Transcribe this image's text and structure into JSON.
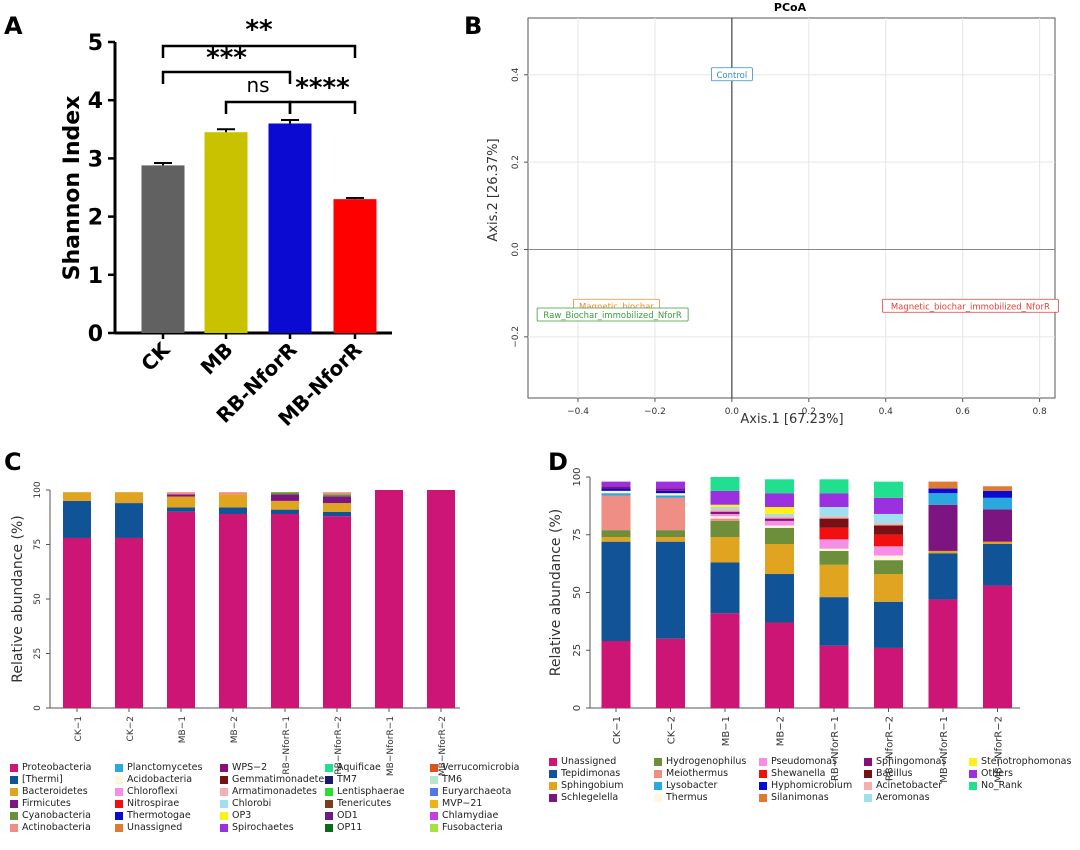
{
  "panel_letters": [
    "A",
    "B",
    "C",
    "D"
  ],
  "chart_data": [
    {
      "id": "A",
      "type": "bar",
      "ylabel": "Shannon Index",
      "ylim": [
        0,
        5
      ],
      "yticks": [
        "0",
        "1",
        "2",
        "3",
        "4",
        "5"
      ],
      "categories": [
        "CK",
        "MB",
        "RB-NforR",
        "MB-NforR"
      ],
      "values": [
        2.88,
        3.45,
        3.6,
        2.3
      ],
      "errors": [
        0.04,
        0.05,
        0.06,
        0.02
      ],
      "colors": [
        "#616161",
        "#c8c200",
        "#0a0ad2",
        "#ff0000"
      ],
      "significance": [
        {
          "from": "CK",
          "to": "MB-NforR",
          "label": "**"
        },
        {
          "from": "CK",
          "to": "RB-NforR",
          "label": "***"
        },
        {
          "from": "MB",
          "to": "RB-NforR",
          "label": "ns"
        },
        {
          "from": "RB-NforR",
          "to": "MB-NforR",
          "label": "****"
        }
      ]
    },
    {
      "id": "B",
      "type": "scatter",
      "title": "PCoA",
      "xlabel": "Axis.1  [67.23%]",
      "ylabel": "Axis.2  [26.37%]",
      "xlim": [
        -0.53,
        0.84
      ],
      "ylim": [
        -0.34,
        0.53
      ],
      "xticks": [
        {
          "v": -0.4,
          "t": "−0.4"
        },
        {
          "v": -0.2,
          "t": "−0.2"
        },
        {
          "v": 0,
          "t": "0.0"
        },
        {
          "v": 0.2,
          "t": "0.2"
        },
        {
          "v": 0.4,
          "t": "0.4"
        },
        {
          "v": 0.6,
          "t": "0.6"
        },
        {
          "v": 0.8,
          "t": "0.8"
        }
      ],
      "yticks": [
        {
          "v": -0.2,
          "t": "−0.2"
        },
        {
          "v": 0,
          "t": "0.0"
        },
        {
          "v": 0.2,
          "t": "0.2"
        },
        {
          "v": 0.4,
          "t": "0.4"
        }
      ],
      "points": [
        {
          "label": "Control",
          "x": 0,
          "y": 0.4,
          "color": "#2f8fd0"
        },
        {
          "label": "Magnetic_biochar",
          "x": -0.3,
          "y": -0.13,
          "color": "#f08a2a"
        },
        {
          "label": "Raw_Biochar_immobilized_NforR",
          "x": -0.31,
          "y": -0.15,
          "color": "#3a9a3a"
        },
        {
          "label": "Magnetic_biochar_immobilized_NforR",
          "x": 0.62,
          "y": -0.13,
          "color": "#e0403a"
        }
      ]
    },
    {
      "id": "C",
      "type": "bar",
      "stacked": true,
      "ylabel": "Relative abundance (%)",
      "ylim": [
        0,
        100
      ],
      "yticks": [
        "0",
        "25",
        "50",
        "75",
        "100"
      ],
      "categories": [
        "CK−1",
        "CK−2",
        "MB−1",
        "MB−2",
        "RB−NforR−1",
        "RB−NforR−2",
        "MB−NforR−1",
        "MB−NforR−2"
      ],
      "series": [
        {
          "name": "Proteobacteria",
          "color": "#cc1574",
          "values": [
            78,
            78,
            90,
            89,
            89,
            88,
            100,
            100
          ]
        },
        {
          "name": "[Thermi]",
          "color": "#115397",
          "values": [
            17,
            16,
            2,
            3,
            2,
            2,
            0,
            0
          ]
        },
        {
          "name": "Bacteroidetes",
          "color": "#e0a420",
          "values": [
            4,
            5,
            5,
            6,
            4,
            4,
            0,
            0
          ]
        },
        {
          "name": "Firmicutes",
          "color": "#7c1580",
          "values": [
            0,
            0,
            1,
            0,
            3,
            3,
            0,
            0
          ]
        },
        {
          "name": "Cyanobacteria",
          "color": "#6d8f3c",
          "values": [
            0,
            0,
            0,
            0,
            1,
            1,
            0,
            0
          ]
        },
        {
          "name": "Actinobacteria",
          "color": "#ef8e84",
          "values": [
            0,
            0,
            1,
            1,
            0,
            1,
            0,
            0
          ]
        },
        {
          "name": "Planctomycetes",
          "color": "#2aa9df",
          "values": [
            0,
            0,
            0,
            0,
            0,
            0,
            0,
            0
          ]
        },
        {
          "name": "Acidobacteria",
          "color": "#fff5e0",
          "values": [
            0,
            0,
            0,
            0,
            0,
            0,
            0,
            0
          ]
        },
        {
          "name": "Chloroflexi",
          "color": "#f58ee5",
          "values": [
            0,
            0,
            0,
            0,
            0,
            0,
            0,
            0
          ]
        },
        {
          "name": "Nitrospirae",
          "color": "#f10f0f",
          "values": [
            0,
            0,
            0,
            0,
            0,
            0,
            0,
            0
          ]
        },
        {
          "name": "Thermotogae",
          "color": "#0a0ad2",
          "values": [
            0,
            0,
            0,
            0,
            0,
            0,
            0,
            0
          ]
        },
        {
          "name": "Unassigned",
          "color": "#e07a32",
          "values": [
            0,
            0,
            0,
            0,
            0,
            0,
            0,
            0
          ]
        },
        {
          "name": "WPS−2",
          "color": "#88107a",
          "values": [
            0,
            0,
            0,
            0,
            0,
            0,
            0,
            0
          ]
        },
        {
          "name": "Gemmatimonadetes",
          "color": "#7a0f14",
          "values": [
            0,
            0,
            0,
            0,
            0,
            0,
            0,
            0
          ]
        },
        {
          "name": "Armatimonadetes",
          "color": "#f3b0b0",
          "values": [
            0,
            0,
            0,
            0,
            0,
            0,
            0,
            0
          ]
        },
        {
          "name": "Chlorobi",
          "color": "#a0e0ee",
          "values": [
            0,
            0,
            0,
            0,
            0,
            0,
            0,
            0
          ]
        },
        {
          "name": "OP3",
          "color": "#ffef1a",
          "values": [
            0,
            0,
            0,
            0,
            0,
            0,
            0,
            0
          ]
        },
        {
          "name": "Spirochaetes",
          "color": "#9a30e0",
          "values": [
            0,
            0,
            0,
            0,
            0,
            0,
            0,
            0
          ]
        },
        {
          "name": "Aquificae",
          "color": "#20e090",
          "values": [
            0,
            0,
            0,
            0,
            0,
            0,
            0,
            0
          ]
        },
        {
          "name": "TM7",
          "color": "#1a1a6a",
          "values": [
            0,
            0,
            0,
            0,
            0,
            0,
            0,
            0
          ]
        },
        {
          "name": "Lentisphaerae",
          "color": "#2adf2a",
          "values": [
            0,
            0,
            0,
            0,
            0,
            0,
            0,
            0
          ]
        },
        {
          "name": "Tenericutes",
          "color": "#7a3e1a",
          "values": [
            0,
            0,
            0,
            0,
            0,
            0,
            0,
            0
          ]
        },
        {
          "name": "OD1",
          "color": "#6a1a8a",
          "values": [
            0,
            0,
            0,
            0,
            0,
            0,
            0,
            0
          ]
        },
        {
          "name": "OP11",
          "color": "#0a6a1a",
          "values": [
            0,
            0,
            0,
            0,
            0,
            0,
            0,
            0
          ]
        },
        {
          "name": "Verrucomicrobia",
          "color": "#e0501a",
          "values": [
            0,
            0,
            0,
            0,
            0,
            0,
            0,
            0
          ]
        },
        {
          "name": "TM6",
          "color": "#b8e6c8",
          "values": [
            0,
            0,
            0,
            0,
            0,
            0,
            0,
            0
          ]
        },
        {
          "name": "Euryarchaeota",
          "color": "#5078e0",
          "values": [
            0,
            0,
            0,
            0,
            0,
            0,
            0,
            0
          ]
        },
        {
          "name": "MVP−21",
          "color": "#f0b21a",
          "values": [
            0,
            0,
            0,
            0,
            0,
            0,
            0,
            0
          ]
        },
        {
          "name": "Chlamydiae",
          "color": "#c040e0",
          "values": [
            0,
            0,
            0,
            0,
            0,
            0,
            0,
            0
          ]
        },
        {
          "name": "Fusobacteria",
          "color": "#a8e040",
          "values": [
            0,
            0,
            0,
            0,
            0,
            0,
            0,
            0
          ]
        }
      ]
    },
    {
      "id": "D",
      "type": "bar",
      "stacked": true,
      "ylabel": "Relative abundance (%)",
      "ylim": [
        0,
        100
      ],
      "yticks": [
        "0",
        "25",
        "50",
        "75",
        "100"
      ],
      "categories": [
        "CK−1",
        "CK−2",
        "MB−1",
        "MB−2",
        "RB−NforR−1",
        "RB−NforR−2",
        "MB−NforR−1",
        "MB−NforR−2"
      ],
      "series": [
        {
          "name": "Unassigned",
          "color": "#cc1574",
          "values": [
            29,
            30,
            41,
            37,
            27,
            26,
            47,
            53
          ]
        },
        {
          "name": "Tepidimonas",
          "color": "#115397",
          "values": [
            43,
            42,
            22,
            21,
            21,
            20,
            20,
            18
          ]
        },
        {
          "name": "Sphingobium",
          "color": "#e0a420",
          "values": [
            2,
            2,
            11,
            13,
            14,
            12,
            1,
            1
          ]
        },
        {
          "name": "Schlegelella",
          "color": "#7c1580",
          "values": [
            0,
            0,
            0,
            0,
            0,
            0,
            20,
            14
          ]
        },
        {
          "name": "Hydrogenophilus",
          "color": "#6d8f3c",
          "values": [
            3,
            3,
            7,
            7,
            6,
            6,
            0,
            0
          ]
        },
        {
          "name": "Meiothermus",
          "color": "#ef8e84",
          "values": [
            15,
            14,
            1,
            0,
            0,
            0,
            0,
            0
          ]
        },
        {
          "name": "Lysobacter",
          "color": "#2aa9df",
          "values": [
            1,
            1,
            0,
            0,
            0,
            0,
            5,
            5
          ]
        },
        {
          "name": "Thermus",
          "color": "#fff5e0",
          "values": [
            1,
            1,
            1,
            1,
            1,
            2,
            0,
            0
          ]
        },
        {
          "name": "Pseudomonas",
          "color": "#f58ee5",
          "values": [
            0,
            0,
            1,
            2,
            4,
            4,
            0,
            0
          ]
        },
        {
          "name": "Shewanella",
          "color": "#f10f0f",
          "values": [
            0,
            0,
            0,
            0,
            5,
            5,
            0,
            0
          ]
        },
        {
          "name": "Hyphomicrobium",
          "color": "#0a0ad2",
          "values": [
            1,
            1,
            0,
            0,
            0,
            0,
            2,
            3
          ]
        },
        {
          "name": "Silanimonas",
          "color": "#e07a32",
          "values": [
            0,
            0,
            0,
            0,
            0,
            0,
            3,
            2
          ]
        },
        {
          "name": "Sphingomonas",
          "color": "#88107a",
          "values": [
            1,
            1,
            1,
            1,
            0,
            0,
            0,
            0
          ]
        },
        {
          "name": "Bacillus",
          "color": "#7a0f14",
          "values": [
            0,
            0,
            0,
            0,
            4,
            4,
            0,
            0
          ]
        },
        {
          "name": "Acinetobacter",
          "color": "#f3b0b0",
          "values": [
            0,
            0,
            1,
            1,
            1,
            1,
            0,
            0
          ]
        },
        {
          "name": "Aeromonas",
          "color": "#a0e0ee",
          "values": [
            0,
            0,
            1,
            1,
            4,
            4,
            0,
            0
          ]
        },
        {
          "name": "Stenotrophomonas",
          "color": "#ffef1a",
          "values": [
            0,
            0,
            1,
            3,
            0,
            0,
            0,
            0
          ]
        },
        {
          "name": "Others",
          "color": "#9a30e0",
          "values": [
            2,
            3,
            6,
            6,
            6,
            7,
            0,
            0
          ]
        },
        {
          "name": "No_Rank",
          "color": "#20e090",
          "values": [
            0,
            0,
            6,
            6,
            6,
            7,
            0,
            0
          ]
        }
      ]
    }
  ]
}
